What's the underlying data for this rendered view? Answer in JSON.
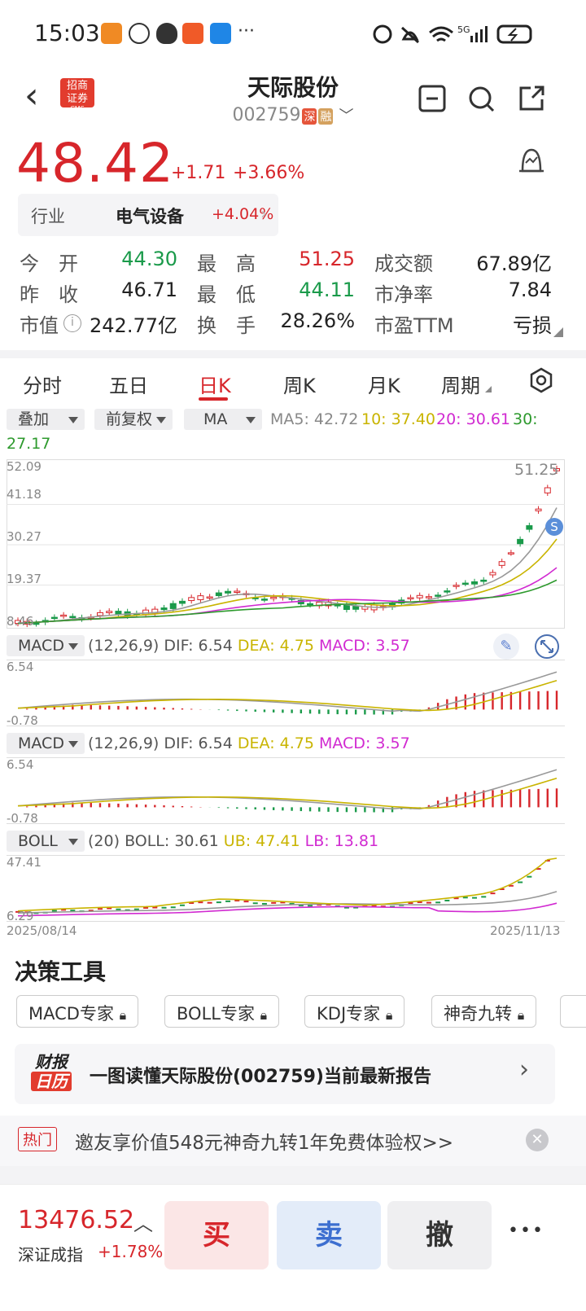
{
  "status": {
    "time": "15:03",
    "network": "5G"
  },
  "nav": {
    "broker_logo_line1": "招商",
    "broker_logo_line2": "证券",
    "broker_logo_line3": "CMS",
    "stock_name": "天际股份",
    "stock_code": "002759",
    "tag_market": "深",
    "tag_margin": "融"
  },
  "quote": {
    "price": "48.42",
    "change": "+1.71",
    "change_pct": "+3.66%"
  },
  "industry": {
    "label": "行业",
    "name": "电气设备",
    "pct": "+4.04%"
  },
  "stats": {
    "open_label": "今　开",
    "open": "44.30",
    "high_label": "最　高",
    "high": "51.25",
    "turnover_amt_label": "成交额",
    "turnover_amt": "67.89亿",
    "prev_label": "昨　收",
    "prev": "46.71",
    "low_label": "最　低",
    "low": "44.11",
    "pb_label": "市净率",
    "pb": "7.84",
    "mcap_label": "市值",
    "mcap": "242.77亿",
    "turnover_label": "换　手",
    "turnover": "28.26%",
    "pe_label": "市盈TTM",
    "pe": "亏损"
  },
  "tabs": [
    "分时",
    "五日",
    "日K",
    "周K",
    "月K",
    "周期"
  ],
  "toolbar": {
    "overlay": "叠加",
    "adjust": "前复权",
    "indicator": "MA",
    "ma5": "MA5: 42.72",
    "ma10": "10: 37.40",
    "ma20": "20: 30.61",
    "ma30_label": "30:",
    "ma30": "27.17"
  },
  "kline": {
    "y_ticks": [
      "52.09",
      "41.18",
      "30.27",
      "19.37",
      "8.46"
    ],
    "max_label": "51.25",
    "signal": "S"
  },
  "macd1": {
    "name": "MACD",
    "params": "(12,26,9)",
    "dif": "DIF: 6.54",
    "dea": "DEA: 4.75",
    "macd": "MACD: 3.57",
    "y_top": "6.54",
    "y_bot": "-0.78"
  },
  "macd2": {
    "name": "MACD",
    "params": "(12,26,9)",
    "dif": "DIF: 6.54",
    "dea": "DEA: 4.75",
    "macd": "MACD: 3.57",
    "y_top": "6.54",
    "y_bot": "-0.78"
  },
  "boll": {
    "name": "BOLL",
    "params": "(20)",
    "mid": "BOLL: 30.61",
    "ub": "UB: 47.41",
    "lb": "LB: 13.81",
    "y_top": "47.41",
    "y_bot": "6.29",
    "date_start": "2025/08/14",
    "date_end": "2025/11/13"
  },
  "decision": {
    "title": "决策工具",
    "tools": [
      "MACD专家",
      "BOLL专家",
      "KDJ专家",
      "神奇九转"
    ]
  },
  "report": {
    "logo1": "财报",
    "logo2": "日历",
    "text": "一图读懂天际股份(002759)当前最新报告"
  },
  "hot": {
    "tag": "热门",
    "text": "邀友享价值548元神奇九转1年免费体验权>>"
  },
  "bottom": {
    "index_value": "13476.52",
    "index_name": "深证成指",
    "index_pct": "+1.78%",
    "buy": "买",
    "sell": "卖",
    "cancel": "撤",
    "more": "•••"
  },
  "colors": {
    "up": "#d7262b",
    "down": "#1a9a4a",
    "ma5": "#999999",
    "ma10": "#c9b400",
    "ma20": "#d12ad1",
    "ma30": "#2e9a2e"
  }
}
